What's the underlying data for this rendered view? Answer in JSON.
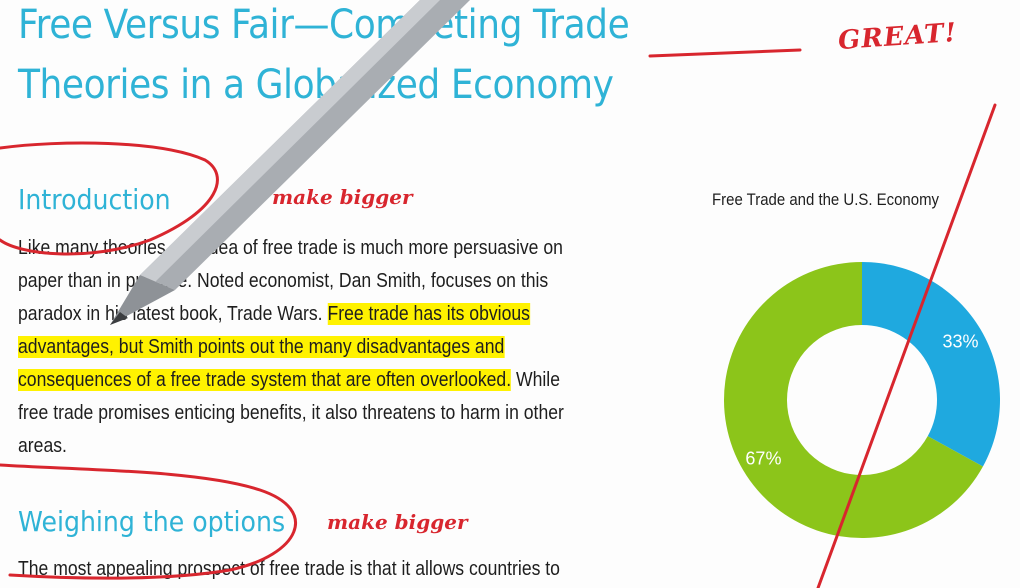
{
  "document": {
    "title_line1": "Free Versus Fair—Competing Trade",
    "title_line2": "Theories in a Globalized Economy",
    "heading_intro": "Introduction",
    "intro_lines": [
      "Like many theories, the idea of free trade is much more persuasive on",
      "paper than in practice. Noted economist, Dan Smith, focuses on this",
      "paradox in his latest book, Trade Wars. "
    ],
    "intro_highlight": [
      "Free trade has its obvious",
      "advantages, but Smith points out the many disadvantages and",
      "consequences of a free trade system that are often overlooked."
    ],
    "intro_after": [
      " While",
      "free trade promises enticing benefits, it also threatens to harm in other",
      "areas."
    ],
    "heading_weighing": "Weighing the options",
    "weighing_line": "The most appealing prospect of free trade is that it allows countries to"
  },
  "annotations": {
    "great": "GREAT!",
    "make_bigger_1": "make bigger",
    "make_bigger_2": "make bigger",
    "ink_color": "#d8262e"
  },
  "colors": {
    "heading": "#2fb3d6",
    "highlight": "#fff200",
    "donut_blue": "#1fa9df",
    "donut_green": "#8cc51a"
  },
  "chart_data": {
    "type": "pie",
    "title": "Free Trade and the U.S. Economy",
    "donut": true,
    "categories": [
      "33%",
      "67%"
    ],
    "values": [
      33,
      67
    ],
    "colors": [
      "#1fa9df",
      "#8cc51a"
    ]
  }
}
